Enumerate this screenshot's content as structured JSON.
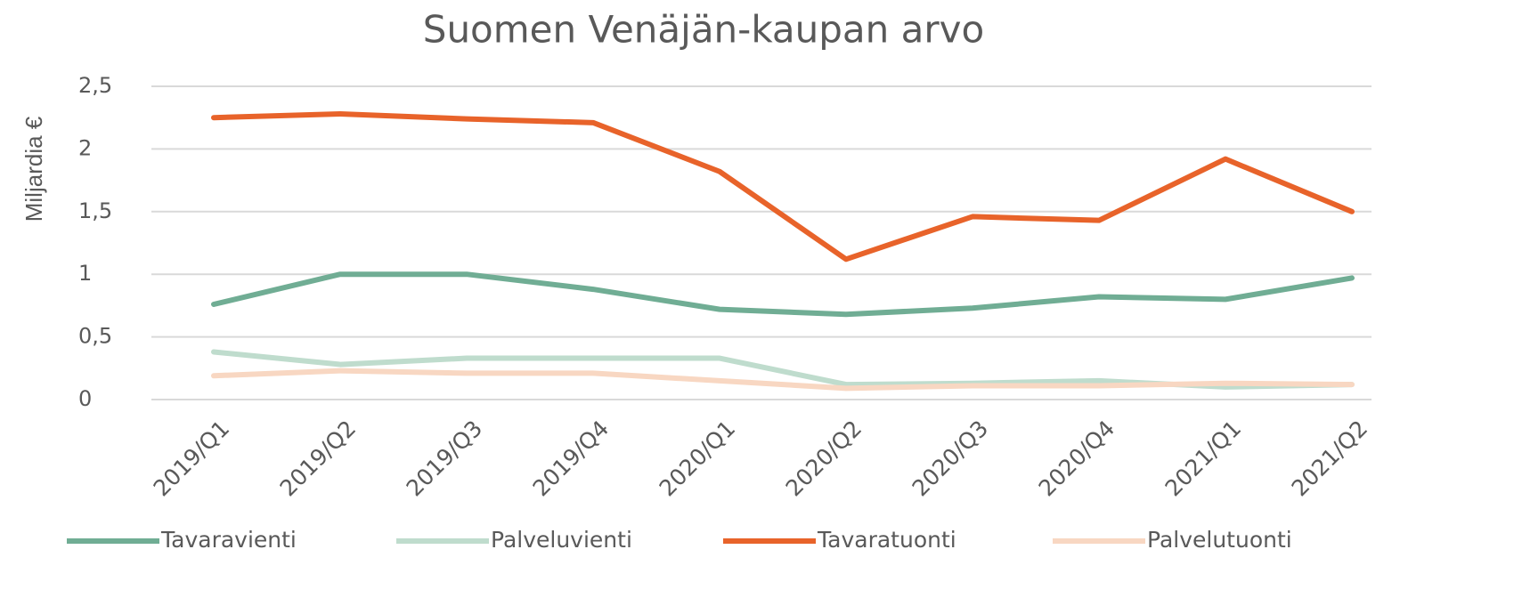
{
  "chart_data": {
    "type": "line",
    "title": "Suomen Venäjän-kaupan arvo",
    "y_label": "Miljardia €",
    "categories": [
      "2019/Q1",
      "2019/Q2",
      "2019/Q3",
      "2019/Q4",
      "2020/Q1",
      "2020/Q2",
      "2020/Q3",
      "2020/Q4",
      "2021/Q1",
      "2021/Q2"
    ],
    "series": [
      {
        "name": "Tavaravienti",
        "color": "#70ad94",
        "values": [
          0.76,
          1.0,
          1.0,
          0.88,
          0.72,
          0.68,
          0.73,
          0.82,
          0.8,
          0.97
        ]
      },
      {
        "name": "Palveluvienti",
        "color": "#bfdccd",
        "values": [
          0.38,
          0.28,
          0.33,
          0.33,
          0.33,
          0.12,
          0.13,
          0.15,
          0.1,
          0.12
        ]
      },
      {
        "name": "Tavaratuonti",
        "color": "#e8632a",
        "values": [
          2.25,
          2.28,
          2.24,
          2.21,
          1.82,
          1.12,
          1.46,
          1.43,
          1.92,
          1.5
        ]
      },
      {
        "name": "Palvelutuonti",
        "color": "#f8d7c2",
        "values": [
          0.19,
          0.23,
          0.21,
          0.21,
          0.15,
          0.09,
          0.11,
          0.11,
          0.13,
          0.12
        ]
      }
    ],
    "ylim": [
      0,
      2.5
    ],
    "yticks": [
      0,
      {
        "value": 0.5,
        "label": "0,5"
      },
      1,
      {
        "value": 1.5,
        "label": "1,5"
      },
      2,
      {
        "value": 2.5,
        "label": "2,5"
      }
    ],
    "grid": true,
    "legend": "bottom"
  }
}
